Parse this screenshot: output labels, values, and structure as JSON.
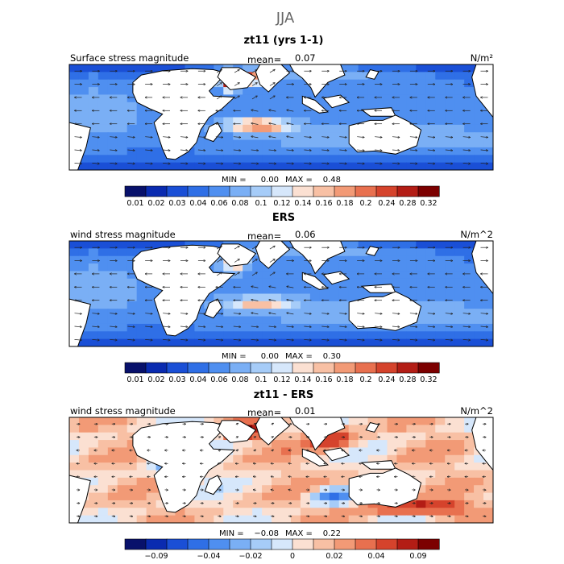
{
  "season": "JJA",
  "panels": [
    {
      "title": "zt11 (yrs 1-1)",
      "varname": "Surface stress magnitude",
      "mean_label": "mean=",
      "mean_value": "0.07",
      "units": "N/m²",
      "min_label": "MIN =",
      "min_value": "0.00",
      "max_label": "MAX =",
      "max_value": "0.48"
    },
    {
      "title": "ERS",
      "varname": "wind stress magnitude",
      "mean_label": "mean=",
      "mean_value": "0.06",
      "units": "N/m^2",
      "min_label": "MIN =",
      "min_value": "0.00",
      "max_label": "MAX =",
      "max_value": "0.30"
    },
    {
      "title": "zt11 - ERS",
      "varname": "wind stress magnitude",
      "mean_label": "mean=",
      "mean_value": "0.01",
      "units": "N/m^2",
      "min_label": "MIN =",
      "min_value": "−0.08",
      "max_label": "MAX =",
      "max_value": "0.22"
    }
  ],
  "colorbars": [
    {
      "colors": [
        "#08116b",
        "#0a2bb0",
        "#1a4fd6",
        "#2f6fe6",
        "#4f8ff0",
        "#7aaff5",
        "#a6ccf8",
        "#d6e7fb",
        "#fbe0d2",
        "#f8c0a4",
        "#f29a76",
        "#e8704f",
        "#d5432c",
        "#b31d15",
        "#7c0000"
      ],
      "labels": [
        "0.01",
        "0.02",
        "0.03",
        "0.04",
        "0.06",
        "0.08",
        "0.1",
        "0.12",
        "0.14",
        "0.16",
        "0.18",
        "0.2",
        "0.24",
        "0.28",
        "0.32"
      ]
    },
    {
      "colors": [
        "#08116b",
        "#0a2bb0",
        "#1a4fd6",
        "#2f6fe6",
        "#4f8ff0",
        "#7aaff5",
        "#a6ccf8",
        "#d6e7fb",
        "#fbe0d2",
        "#f8c0a4",
        "#f29a76",
        "#e8704f",
        "#d5432c",
        "#b31d15",
        "#7c0000"
      ],
      "labels": [
        "0.01",
        "0.02",
        "0.03",
        "0.04",
        "0.06",
        "0.08",
        "0.1",
        "0.12",
        "0.14",
        "0.16",
        "0.18",
        "0.2",
        "0.24",
        "0.28",
        "0.32"
      ]
    },
    {
      "colors": [
        "#08116b",
        "#0a2bb0",
        "#1a4fd6",
        "#2f6fe6",
        "#4f8ff0",
        "#7aaff5",
        "#a6ccf8",
        "#d6e7fb",
        "#fbe0d2",
        "#f8c0a4",
        "#f29a76",
        "#e8704f",
        "#d5432c",
        "#b31d15",
        "#7c0000"
      ],
      "labels": [
        "−0.09",
        "−0.04",
        "−0.02",
        "0",
        "0.02",
        "0.04",
        "0.09"
      ]
    }
  ],
  "chart_data": [
    {
      "type": "heatmap",
      "title": "zt11 (yrs 1-1)",
      "variable": "Surface stress magnitude",
      "units": "N/m²",
      "mean": 0.07,
      "min": 0.0,
      "max": 0.48,
      "color_levels": [
        0.01,
        0.02,
        0.03,
        0.04,
        0.06,
        0.08,
        0.1,
        0.12,
        0.14,
        0.16,
        0.18,
        0.2,
        0.24,
        0.28,
        0.32
      ]
    },
    {
      "type": "heatmap",
      "title": "ERS",
      "variable": "wind stress magnitude",
      "units": "N/m^2",
      "mean": 0.06,
      "min": 0.0,
      "max": 0.3,
      "color_levels": [
        0.01,
        0.02,
        0.03,
        0.04,
        0.06,
        0.08,
        0.1,
        0.12,
        0.14,
        0.16,
        0.18,
        0.2,
        0.24,
        0.28,
        0.32
      ]
    },
    {
      "type": "heatmap",
      "title": "zt11 - ERS",
      "variable": "wind stress magnitude",
      "units": "N/m^2",
      "mean": 0.01,
      "min": -0.08,
      "max": 0.22,
      "color_levels": [
        -0.09,
        -0.04,
        -0.02,
        0,
        0.02,
        0.04,
        0.09
      ]
    }
  ]
}
